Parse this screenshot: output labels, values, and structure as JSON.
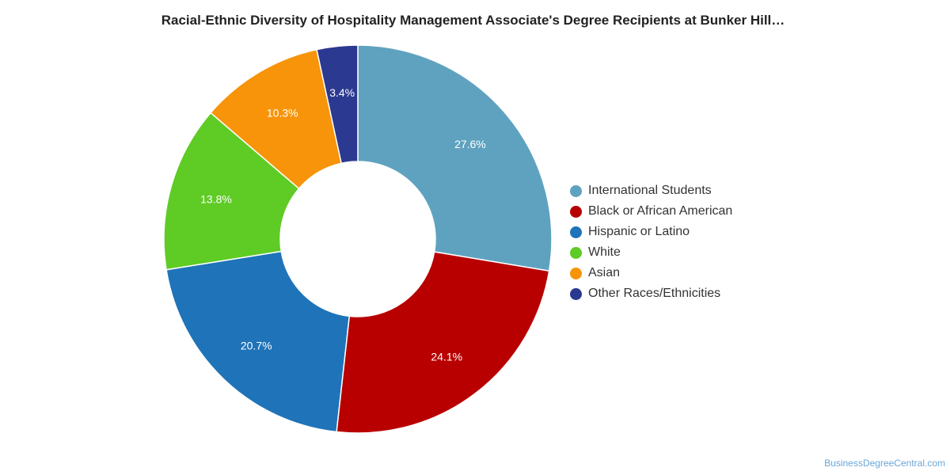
{
  "chart_data": {
    "type": "pie",
    "title": "Racial-Ethnic Diversity of Hospitality Management Associate's Degree Recipients at Bunker Hill…",
    "categories": [
      "International Students",
      "Black or African American",
      "Hispanic or Latino",
      "White",
      "Asian",
      "Other Races/Ethnicities"
    ],
    "values": [
      27.6,
      24.1,
      20.7,
      13.8,
      10.3,
      3.4
    ],
    "labels": [
      "27.6%",
      "24.1%",
      "20.7%",
      "13.8%",
      "10.3%",
      "3.4%"
    ],
    "colors": [
      "#5fa2c0",
      "#b80000",
      "#1f73b8",
      "#5fcb25",
      "#f7940a",
      "#2b3990"
    ],
    "legend_position": "right"
  },
  "watermark": "BusinessDegreeCentral.com"
}
